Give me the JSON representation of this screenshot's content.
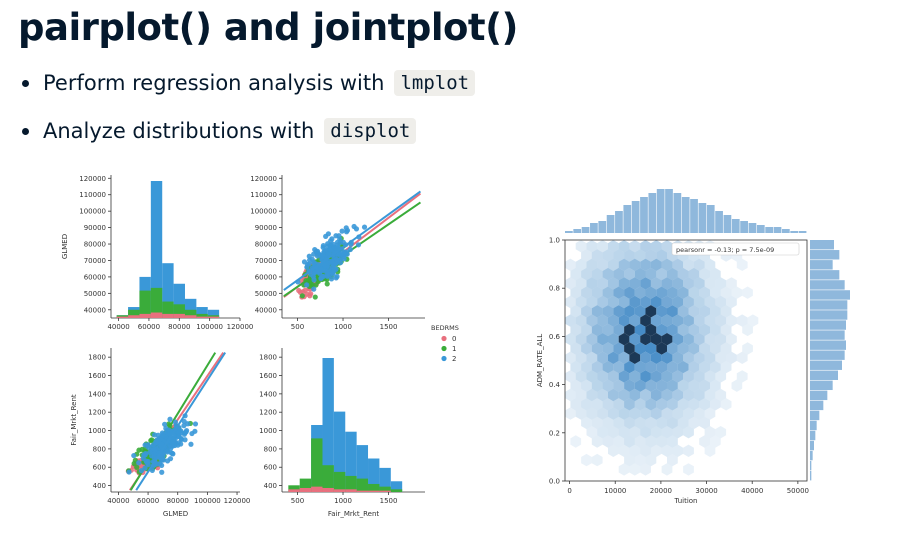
{
  "title": "pairplot() and jointplot()",
  "bullets": [
    {
      "text": "Perform regression analysis with",
      "code": "lmplot"
    },
    {
      "text": "Analyze distributions with",
      "code": "displot"
    }
  ],
  "colors": {
    "hue0": "#e8707e",
    "hue1": "#3aac3a",
    "hue2": "#3a98d8",
    "joint": "#2f7ec0"
  },
  "chart_data": [
    {
      "type": "pairplot",
      "variables": [
        "GLMED",
        "Fair_Mrkt_Rent"
      ],
      "hue": {
        "title": "BEDRMS",
        "levels": [
          "0",
          "1",
          "2"
        ]
      },
      "panels": {
        "glmed_hist": {
          "type": "bar",
          "xticks": [
            "40000",
            "60000",
            "80000",
            "100000",
            "120000"
          ],
          "yticks": [
            "120000",
            "110000",
            "100000",
            "90000",
            "80000",
            "70000",
            "60000",
            "50000",
            "40000"
          ],
          "ylabel": "GLMED",
          "xlim": [
            35000,
            120000
          ],
          "bin_width": 7500,
          "bins": [
            42500,
            50000,
            57500,
            65000,
            72500,
            80000,
            87500,
            95000,
            102500
          ],
          "series": [
            {
              "name": "0",
              "values": [
                1,
                2,
                3,
                4,
                3,
                3,
                2,
                1,
                1
              ]
            },
            {
              "name": "1",
              "values": [
                2,
                6,
                20,
                22,
                12,
                10,
                6,
                3,
                2
              ]
            },
            {
              "name": "2",
              "values": [
                2,
                8,
                30,
                100,
                40,
                25,
                14,
                8,
                6
              ]
            }
          ]
        },
        "rent_vs_glmed": {
          "type": "scatter",
          "xticks": [
            "500",
            "1000",
            "1500"
          ],
          "yticks": [
            "120000",
            "110000",
            "100000",
            "90000",
            "80000",
            "70000",
            "60000",
            "50000",
            "40000"
          ],
          "xlim": [
            330,
            1900
          ],
          "ylim": [
            35000,
            122000
          ]
        },
        "glmed_vs_rent": {
          "type": "scatter",
          "xticks": [
            "40000",
            "60000",
            "80000",
            "100000",
            "120000"
          ],
          "yticks": [
            "1800",
            "1600",
            "1400",
            "1200",
            "1000",
            "800",
            "600",
            "400"
          ],
          "xlabel": "GLMED",
          "ylabel": "Fair_Mrkt_Rent",
          "xlim": [
            35000,
            122000
          ],
          "ylim": [
            330,
            1900
          ]
        },
        "rent_hist": {
          "type": "bar",
          "xticks": [
            "500",
            "1000",
            "1500"
          ],
          "yticks": [
            "1800",
            "1600",
            "1400",
            "1200",
            "1000",
            "800",
            "600",
            "400"
          ],
          "xlabel": "Fair_Mrkt_Rent",
          "xlim": [
            330,
            1900
          ],
          "bin_width": 125,
          "bins": [
            462,
            587,
            712,
            837,
            962,
            1087,
            1212,
            1337,
            1462,
            1587,
            1712
          ],
          "series": [
            {
              "name": "0",
              "values": [
                2,
                3,
                4,
                3,
                2,
                2,
                1,
                1,
                1,
                0,
                0
              ]
            },
            {
              "name": "1",
              "values": [
                5,
                10,
                40,
                20,
                15,
                12,
                10,
                6,
                4,
                2,
                0
              ]
            },
            {
              "name": "2",
              "values": [
                0,
                2,
                50,
                100,
                60,
                45,
                35,
                25,
                18,
                8,
                0
              ]
            }
          ]
        }
      }
    },
    {
      "type": "hexbin",
      "xlabel": "Tuition",
      "ylabel": "ADM_RATE_ALL",
      "xticks": [
        "0",
        "10000",
        "20000",
        "30000",
        "40000",
        "50000"
      ],
      "yticks": [
        "1.0",
        "0.8",
        "0.6",
        "0.4",
        "0.2",
        "0.0"
      ],
      "xlim": [
        -1000,
        52000
      ],
      "ylim": [
        0.0,
        1.0
      ],
      "annotation": "pearsonr = -0.13; p = 7.5e-09",
      "density_center": {
        "x": 16500,
        "y": 0.62
      },
      "marginal_x": [
        1,
        2,
        3,
        5,
        6,
        9,
        11,
        14,
        16,
        18,
        20,
        22,
        22,
        20,
        18,
        17,
        15,
        14,
        11,
        9,
        7,
        6,
        5,
        4,
        3,
        3,
        2,
        1,
        1
      ],
      "marginal_y": [
        1,
        1,
        2,
        3,
        4,
        5,
        7,
        10,
        13,
        17,
        21,
        24,
        26,
        27,
        26,
        27,
        28,
        28,
        30,
        26,
        22,
        17,
        22,
        18
      ]
    }
  ]
}
